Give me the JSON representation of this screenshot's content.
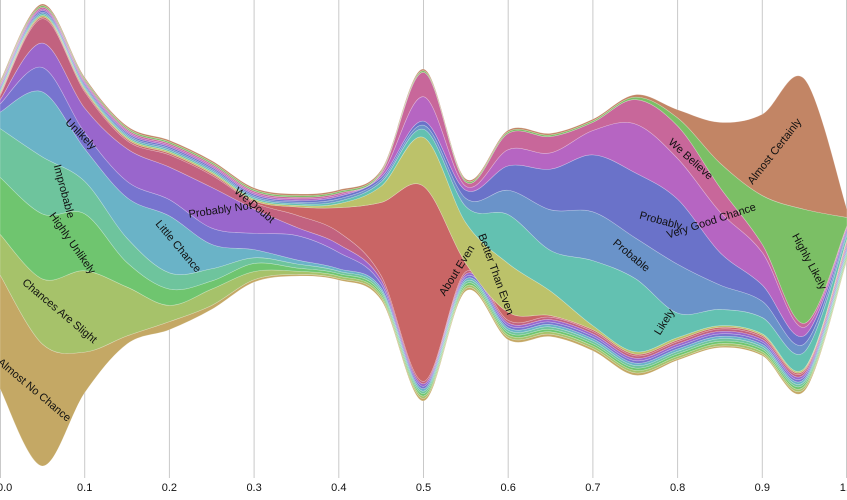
{
  "chart_data": {
    "type": "area",
    "subtype": "streamgraph",
    "title": "",
    "xlabel": "",
    "ylabel": "",
    "xlim": [
      0,
      1
    ],
    "grid": "vertical gridlines at each 0.1",
    "legend": "none; series names printed on each stream",
    "x_ticks": [
      {
        "v": 0.0,
        "t": "0.0"
      },
      {
        "v": 0.1,
        "t": "0.1"
      },
      {
        "v": 0.2,
        "t": "0.2"
      },
      {
        "v": 0.3,
        "t": "0.3"
      },
      {
        "v": 0.4,
        "t": "0.4"
      },
      {
        "v": 0.5,
        "t": "0.5"
      },
      {
        "v": 0.6,
        "t": "0.6"
      },
      {
        "v": 0.7,
        "t": "0.7"
      },
      {
        "v": 0.8,
        "t": "0.8"
      },
      {
        "v": 0.9,
        "t": "0.9"
      },
      {
        "v": 1.0,
        "t": "1.0"
      }
    ],
    "x": [
      0.0,
      0.05,
      0.1,
      0.15,
      0.2,
      0.25,
      0.3,
      0.35,
      0.4,
      0.45,
      0.5,
      0.55,
      0.6,
      0.65,
      0.7,
      0.75,
      0.8,
      0.85,
      0.9,
      0.95,
      1.0
    ],
    "series": [
      {
        "name": "Almost No Chance",
        "color": "#c4a865",
        "values": [
          14,
          15,
          5,
          1,
          1,
          0.5,
          0.3,
          0.2,
          0.2,
          0.3,
          0.3,
          0.3,
          0.3,
          0.3,
          0.3,
          0.3,
          0.2,
          0.2,
          0.2,
          0.3,
          0.2
        ]
      },
      {
        "name": "Chances Are Slight",
        "color": "#a6c26a",
        "values": [
          5,
          8,
          10,
          6,
          2,
          2,
          1,
          0.4,
          0.3,
          0.3,
          0.3,
          0.3,
          0.3,
          0.3,
          0.3,
          0.3,
          0.3,
          0.3,
          0.3,
          0.3,
          0.3
        ]
      },
      {
        "name": "Highly Unlikely",
        "color": "#6fc56f",
        "values": [
          7,
          8,
          7,
          3,
          2,
          1,
          1,
          0.4,
          0.3,
          0.3,
          0.3,
          0.3,
          0.3,
          0.3,
          0.3,
          0.3,
          0.3,
          0.3,
          0.3,
          0.3,
          0.3
        ]
      },
      {
        "name": "Improbable",
        "color": "#6ec49d",
        "values": [
          6,
          7,
          4,
          3,
          2,
          1.5,
          0.7,
          0.5,
          0.3,
          0.3,
          0.3,
          0.3,
          0.3,
          0.3,
          0.3,
          0.3,
          0.3,
          0.3,
          0.3,
          0.3,
          0.3
        ]
      },
      {
        "name": "Little Chance",
        "color": "#6ab3c7",
        "values": [
          2,
          8,
          4,
          5,
          7,
          3,
          1,
          0.5,
          0.3,
          0.3,
          0.3,
          0.3,
          0.3,
          0.3,
          0.3,
          0.3,
          0.3,
          0.3,
          0.3,
          0.3,
          0.3
        ]
      },
      {
        "name": "Unlikely",
        "color": "#7774cf",
        "values": [
          1,
          3,
          2,
          2,
          2,
          2,
          2,
          3,
          2,
          0.5,
          0.3,
          0.3,
          0.3,
          0.3,
          0.3,
          0.3,
          0.3,
          0.3,
          0.3,
          0.3,
          0.3
        ]
      },
      {
        "name": "Probably Not",
        "color": "#9966cc",
        "values": [
          0.5,
          3,
          3,
          4,
          4,
          5,
          3,
          1,
          1,
          0.5,
          0.3,
          0.3,
          0.3,
          0.3,
          0.3,
          0.3,
          0.3,
          0.3,
          0.3,
          0.3,
          0.3
        ]
      },
      {
        "name": "We Doubt",
        "color": "#c2627f",
        "values": [
          0.5,
          3,
          2,
          1,
          1.5,
          1.5,
          0.8,
          1.5,
          1.5,
          0.5,
          0.3,
          0.3,
          0.3,
          0.3,
          0.3,
          0.3,
          0.3,
          0.3,
          0.3,
          0.3,
          0.3
        ]
      },
      {
        "name": "About Even",
        "color": "#c96565",
        "values": [
          0.2,
          0.2,
          0.2,
          0.2,
          0.2,
          0.2,
          0.2,
          1,
          3,
          9,
          24,
          1,
          1,
          0.2,
          0.2,
          0.2,
          0.2,
          0.2,
          0.2,
          0.2,
          0.2
        ]
      },
      {
        "name": "Better Than Even",
        "color": "#bcc26a",
        "values": [
          0.2,
          0.2,
          0.2,
          0.2,
          0.2,
          0.2,
          0.2,
          0.2,
          0.5,
          2,
          6,
          5,
          6,
          3,
          0.5,
          0.3,
          0.3,
          0.2,
          0.2,
          0.2,
          0.2
        ]
      },
      {
        "name": "Likely",
        "color": "#63c1b1",
        "values": [
          0.2,
          0.2,
          0.2,
          0.2,
          0.2,
          0.2,
          0.2,
          0.2,
          0.3,
          0.5,
          1,
          2,
          6,
          5,
          8,
          9,
          3,
          2,
          2,
          2,
          0.5
        ]
      },
      {
        "name": "Probable",
        "color": "#6a93c9",
        "values": [
          0.2,
          0.2,
          0.2,
          0.2,
          0.2,
          0.2,
          0.2,
          0.2,
          0.3,
          0.3,
          0.5,
          1,
          3,
          5,
          6,
          5,
          6,
          3,
          2,
          1,
          0.3
        ]
      },
      {
        "name": "Probably",
        "color": "#6a72c9",
        "values": [
          0.2,
          0.2,
          0.2,
          0.2,
          0.2,
          0.2,
          0.2,
          0.2,
          0.3,
          0.3,
          0.5,
          1,
          3,
          5,
          7,
          8,
          8,
          4,
          2,
          1,
          0.3
        ]
      },
      {
        "name": "Very Good Chance",
        "color": "#b665c2",
        "values": [
          0.2,
          0.2,
          0.2,
          0.2,
          0.2,
          0.2,
          0.2,
          0.2,
          0.2,
          0.3,
          3,
          0.5,
          2,
          2,
          3,
          6,
          5,
          5,
          4,
          1,
          0.3
        ]
      },
      {
        "name": "We Believe",
        "color": "#c8679a",
        "values": [
          0.2,
          0.2,
          0.2,
          0.2,
          0.2,
          0.2,
          0.2,
          0.2,
          0.2,
          0.2,
          3,
          0.5,
          2,
          2,
          1,
          3,
          4,
          3,
          1,
          0.5,
          0.2
        ]
      },
      {
        "name": "Highly Likely",
        "color": "#7bbf65",
        "values": [
          0.2,
          0.2,
          0.2,
          0.2,
          0.2,
          0.2,
          0.2,
          0.2,
          0.2,
          0.2,
          0.2,
          0.2,
          0.2,
          0.2,
          0.2,
          0.3,
          1,
          3,
          6,
          14,
          1
        ]
      },
      {
        "name": "Almost Certainly",
        "color": "#c28565",
        "values": [
          0.2,
          0.2,
          0.2,
          0.2,
          0.2,
          0.2,
          0.2,
          0.2,
          0.2,
          0.2,
          0.2,
          0.2,
          0.2,
          0.2,
          0.2,
          0.3,
          1,
          5,
          10,
          16,
          1
        ]
      }
    ],
    "series_labels": [
      {
        "name": "Unlikely",
        "x": 0.095,
        "y_frac": 0.5,
        "angle": 45
      },
      {
        "name": "Improbable",
        "x": 0.075,
        "y_frac": 0.5,
        "angle": 75
      },
      {
        "name": "Highly Unlikely",
        "x": 0.085,
        "y_frac": 0.5,
        "angle": 55
      },
      {
        "name": "Chances Are Slight",
        "x": 0.07,
        "y_frac": 0.5,
        "angle": 40
      },
      {
        "name": "Almost No Chance",
        "x": 0.04,
        "y_frac": 0.5,
        "angle": 40
      },
      {
        "name": "Little Chance",
        "x": 0.21,
        "y_frac": 0.5,
        "angle": 50
      },
      {
        "name": "Probably Not",
        "x": 0.26,
        "y_frac": 0.5,
        "angle": -8
      },
      {
        "name": "We Doubt",
        "x": 0.3,
        "y_frac": 0.5,
        "angle": 40
      },
      {
        "name": "About Even",
        "x": 0.54,
        "y_frac": 0.5,
        "angle": -58
      },
      {
        "name": "Better Than Even",
        "x": 0.585,
        "y_frac": 0.5,
        "angle": 70
      },
      {
        "name": "Likely",
        "x": 0.785,
        "y_frac": 0.5,
        "angle": -58
      },
      {
        "name": "Probable",
        "x": 0.745,
        "y_frac": 0.5,
        "angle": 40
      },
      {
        "name": "Probably",
        "x": 0.78,
        "y_frac": 0.5,
        "angle": 15
      },
      {
        "name": "Very Good Chance",
        "x": 0.84,
        "y_frac": 0.5,
        "angle": -18
      },
      {
        "name": "We Believe",
        "x": 0.815,
        "y_frac": 0.5,
        "angle": 42
      },
      {
        "name": "Highly Likely",
        "x": 0.955,
        "y_frac": 0.5,
        "angle": 62
      },
      {
        "name": "Almost Certainly",
        "x": 0.915,
        "y_frac": 0.5,
        "angle": -52
      }
    ]
  }
}
